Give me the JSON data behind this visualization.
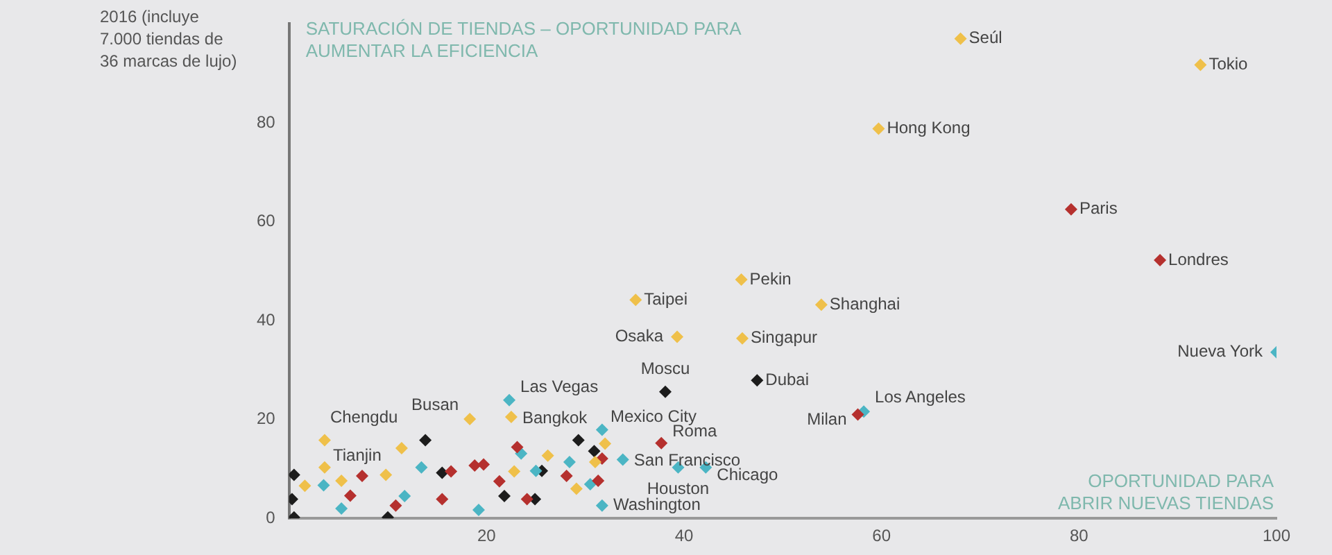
{
  "chart_data": {
    "type": "scatter",
    "ylabel": "2016 (incluye 7.000 tiendas de 36 marcas de lujo)",
    "marker": "diamond",
    "grid": false,
    "legend": false,
    "xlim": [
      0,
      100
    ],
    "xticks": [
      20,
      40,
      60,
      80,
      100
    ],
    "ylim": [
      0,
      100
    ],
    "yticks": [
      0,
      20,
      40,
      60,
      80
    ],
    "series": [
      {
        "color": "#efc04a",
        "x": [
          92.3,
          59.7,
          45.8,
          35.1,
          53.9,
          39.3,
          45.9,
          3.6,
          3.6,
          18.3,
          22.5,
          68,
          1.6,
          5.3,
          9.8,
          11.4,
          22.8,
          26.2,
          29.1,
          31.0,
          32.0
        ],
        "values": [
          91.7,
          78.8,
          48.3,
          44.2,
          43.2,
          36.7,
          36.4,
          15.8,
          10.3,
          20.1,
          20.5,
          97,
          6.6,
          7.6,
          8.8,
          14.2,
          9.5,
          12.7,
          6.0,
          11.4,
          15.1
        ]
      },
      {
        "color": "#b5302e",
        "x": [
          79.2,
          88.2,
          37.7,
          57.6,
          6.2,
          7.4,
          10.8,
          16.4,
          15.5,
          18.8,
          19.7,
          21.3,
          23.1,
          24.1,
          28.1,
          31.3,
          31.7
        ],
        "values": [
          62.5,
          52.2,
          15.2,
          21.0,
          4.6,
          8.6,
          2.6,
          9.5,
          3.9,
          10.7,
          10.9,
          7.5,
          14.4,
          3.9,
          8.6,
          7.6,
          12.1
        ]
      },
      {
        "color": "#4bb5c4",
        "x": [
          100,
          58.2,
          22.3,
          31.7,
          33.8,
          39.4,
          42.2,
          31.7,
          3.5,
          5.3,
          11.7,
          13.4,
          19.2,
          23.5,
          25.0,
          28.4,
          30.5
        ],
        "values": [
          33.6,
          21.6,
          23.9,
          17.9,
          11.9,
          10.3,
          10.3,
          2.6,
          6.7,
          2.0,
          4.5,
          10.3,
          1.7,
          13.1,
          9.6,
          11.4,
          6.9
        ]
      },
      {
        "color": "#1c1c1c",
        "x": [
          47.4,
          38.1,
          0.5,
          0.3,
          0.5,
          10.0,
          13.8,
          15.5,
          21.8,
          24.9,
          25.6,
          29.3,
          30.9
        ],
        "values": [
          27.9,
          25.6,
          8.8,
          3.9,
          0.2,
          0.2,
          15.8,
          9.2,
          4.5,
          3.9,
          9.6,
          15.8,
          13.6
        ]
      }
    ],
    "annotations": [
      "SATURACIÓN DE TIENDAS – OPORTUNIDAD PARA AUMENTAR LA EFICIENCIA",
      "OPORTUNIDAD PARA ABRIR NUEVAS TIENDAS",
      {
        "text": "Tokio",
        "x": 92.3,
        "y": 91.7
      },
      {
        "text": "Hong Kong",
        "x": 59.7,
        "y": 78.8
      },
      {
        "text": "Paris",
        "x": 79.2,
        "y": 62.5
      },
      {
        "text": "Londres",
        "x": 88.2,
        "y": 52.2
      },
      {
        "text": "Pekin",
        "x": 45.8,
        "y": 48.3
      },
      {
        "text": "Taipei",
        "x": 35.1,
        "y": 44.2
      },
      {
        "text": "Shanghai",
        "x": 53.9,
        "y": 43.2
      },
      {
        "text": "Osaka",
        "x": 39.3,
        "y": 36.7
      },
      {
        "text": "Singapur",
        "x": 45.9,
        "y": 36.4
      },
      {
        "text": "Nueva York",
        "x": 100,
        "y": 33.6
      },
      {
        "text": "Dubai",
        "x": 47.4,
        "y": 27.9
      },
      {
        "text": "Moscu",
        "x": 38.1,
        "y": 25.6
      },
      {
        "text": "Los Angeles",
        "x": 58.2,
        "y": 21.6
      },
      {
        "text": "Milan",
        "x": 57.6,
        "y": 21.0
      },
      {
        "text": "Chengdu",
        "x": 3.6,
        "y": 15.8
      },
      {
        "text": "Tianjin",
        "x": 3.6,
        "y": 10.3
      },
      {
        "text": "Busan",
        "x": 18.3,
        "y": 20.1
      },
      {
        "text": "Las Vegas",
        "x": 22.3,
        "y": 23.9
      },
      {
        "text": "Bangkok",
        "x": 22.5,
        "y": 20.5
      },
      {
        "text": "Mexico City",
        "x": 31.7,
        "y": 17.9
      },
      {
        "text": "Roma",
        "x": 37.7,
        "y": 15.2
      },
      {
        "text": "San Francisco",
        "x": 33.8,
        "y": 11.9
      },
      {
        "text": "Houston",
        "x": 39.4,
        "y": 10.3
      },
      {
        "text": "Chicago",
        "x": 42.2,
        "y": 10.3
      },
      {
        "text": "Washington",
        "x": 31.7,
        "y": 2.6
      },
      {
        "text": "Seúl",
        "x": 68,
        "y": 97
      }
    ]
  }
}
